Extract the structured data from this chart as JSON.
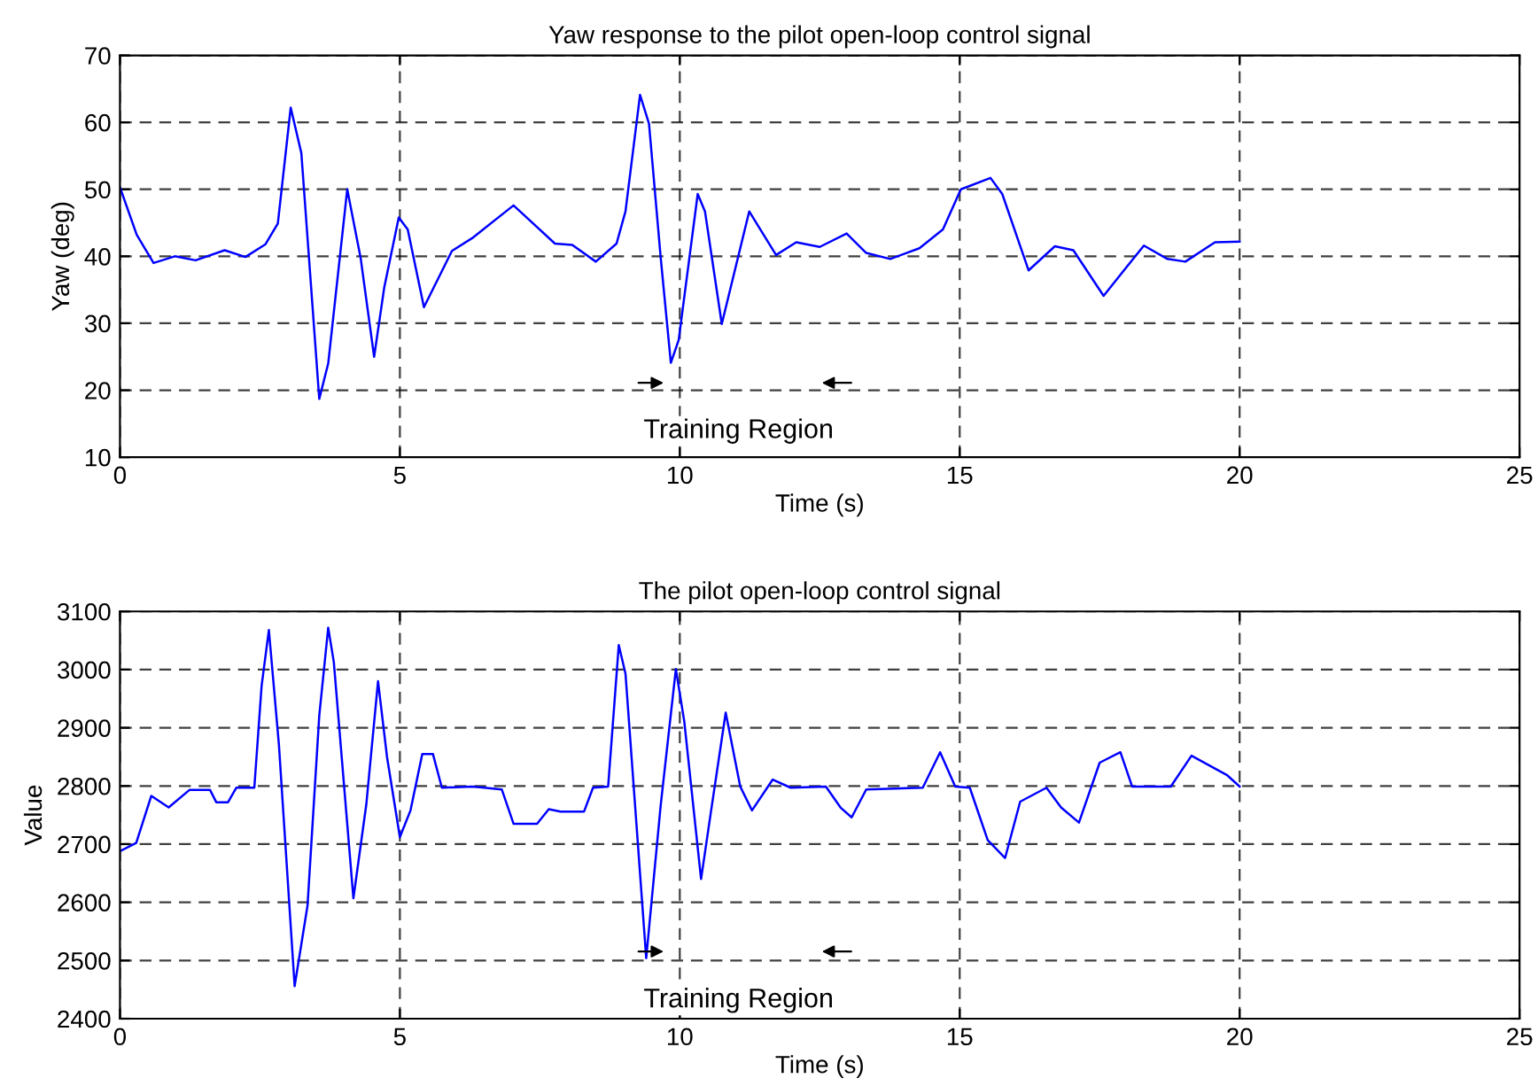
{
  "chart_data": [
    {
      "type": "line",
      "title": "Yaw response to the pilot open-loop control signal",
      "xlabel": "Time (s)",
      "ylabel": "Yaw (deg)",
      "xlim": [
        0,
        25
      ],
      "xticks": [
        0,
        5,
        10,
        15,
        20,
        25
      ],
      "ylim": [
        10,
        70
      ],
      "yticks": [
        10,
        20,
        30,
        40,
        50,
        60,
        70
      ],
      "grid": true,
      "annotations": [
        "Training Region"
      ],
      "series": [
        {
          "color": "#0000ff",
          "x": [
            0,
            0.3,
            0.6,
            0.98,
            1.35,
            1.87,
            2.24,
            2.6,
            2.82,
            3.05,
            3.24,
            3.56,
            3.72,
            4.06,
            4.3,
            4.54,
            4.72,
            4.98,
            5.14,
            5.43,
            5.93,
            6.29,
            7.03,
            7.77,
            8.08,
            8.5,
            8.87,
            9.03,
            9.29,
            9.45,
            9.66,
            9.84,
            9.98,
            10.32,
            10.45,
            10.75,
            11.24,
            11.72,
            12.08,
            12.5,
            12.98,
            13.33,
            13.76,
            14.28,
            14.7,
            15.02,
            15.55,
            15.76,
            16.23,
            16.7,
            17.03,
            17.57,
            18.29,
            18.71,
            19.03,
            19.56,
            20
          ],
          "values": [
            50.3,
            43.2,
            39,
            40,
            39.4,
            40.9,
            39.9,
            41.8,
            44.9,
            62.2,
            55.4,
            18.7,
            24,
            50,
            39.7,
            25,
            35.3,
            45.8,
            44,
            32.4,
            40.8,
            42.7,
            47.6,
            41.9,
            41.7,
            39.2,
            41.9,
            46.7,
            64.1,
            59.8,
            39.7,
            24.1,
            27.5,
            49.3,
            46.7,
            29.9,
            46.7,
            40.2,
            42.1,
            41.4,
            43.4,
            40.5,
            39.6,
            41.2,
            44,
            50,
            51.7,
            49.3,
            37.9,
            41.5,
            40.9,
            34.1,
            41.6,
            39.6,
            39.2,
            42.1,
            42.2
          ]
        }
      ]
    },
    {
      "type": "line",
      "title": "The pilot open-loop control signal",
      "xlabel": "Time (s)",
      "ylabel": "Value",
      "xlim": [
        0,
        25
      ],
      "xticks": [
        0,
        5,
        10,
        15,
        20,
        25
      ],
      "ylim": [
        2400,
        3100
      ],
      "yticks": [
        2400,
        2500,
        2600,
        2700,
        2800,
        2900,
        3000,
        3100
      ],
      "grid": true,
      "annotations": [
        "Training Region"
      ],
      "series": [
        {
          "color": "#0000ff",
          "x": [
            0,
            0.29,
            0.56,
            0.87,
            1.24,
            1.61,
            1.72,
            1.93,
            2.08,
            2.4,
            2.53,
            2.66,
            2.84,
            3.12,
            3.35,
            3.56,
            3.72,
            3.82,
            4.17,
            4.4,
            4.61,
            4.77,
            5,
            5.19,
            5.4,
            5.59,
            5.75,
            6.29,
            6.51,
            6.82,
            7.03,
            7.45,
            7.66,
            7.87,
            8.29,
            8.45,
            8.72,
            8.91,
            9.03,
            9.4,
            9.66,
            9.93,
            10.08,
            10.38,
            10.56,
            10.82,
            11.08,
            11.29,
            11.66,
            11.98,
            12.61,
            12.87,
            13.07,
            13.33,
            14.34,
            14.65,
            14.92,
            15.18,
            15.5,
            15.81,
            16.08,
            16.55,
            16.81,
            17.13,
            17.5,
            17.87,
            18.08,
            18.77,
            19.14,
            19.77,
            20
          ],
          "values": [
            2688,
            2702,
            2783,
            2763,
            2793,
            2793,
            2772,
            2772,
            2797,
            2797,
            2972,
            3068,
            2870,
            2456,
            2594,
            2921,
            3072,
            3013,
            2607,
            2768,
            2980,
            2850,
            2712,
            2758,
            2855,
            2855,
            2797,
            2799,
            2797,
            2794,
            2735,
            2735,
            2760,
            2756,
            2756,
            2797,
            2799,
            3042,
            2993,
            2504,
            2768,
            3001,
            2911,
            2640,
            2758,
            2926,
            2799,
            2758,
            2811,
            2797,
            2799,
            2763,
            2746,
            2794,
            2797,
            2858,
            2799,
            2797,
            2707,
            2676,
            2773,
            2797,
            2763,
            2737,
            2840,
            2858,
            2799,
            2799,
            2852,
            2819,
            2799
          ]
        }
      ]
    }
  ]
}
